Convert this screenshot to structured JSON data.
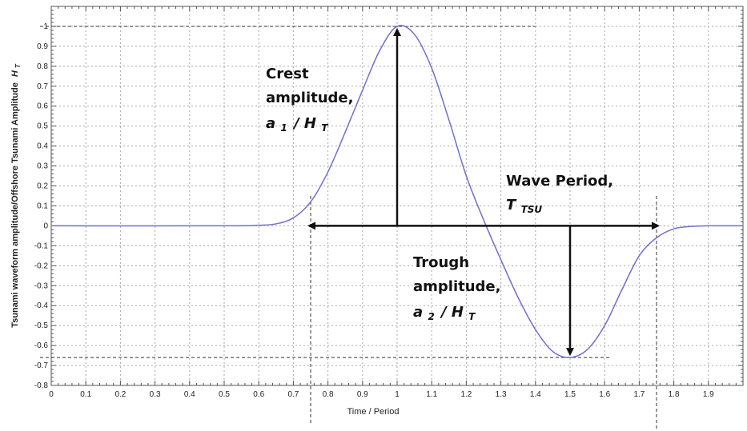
{
  "chart_data": {
    "type": "line",
    "title": "",
    "xlabel": "Time / Period",
    "ylabel": "Tsunami waveform amplitude/Offshore Tsunami Amplitude",
    "ylabel_symbol": "H",
    "ylabel_symbol_sub": "T",
    "xlim": [
      0,
      2.0
    ],
    "ylim": [
      -0.8,
      1.1
    ],
    "x_ticks": [
      "0",
      "0.1",
      "0.2",
      "0.3",
      "0.4",
      "0.5",
      "0.6",
      "0.7",
      "0.8",
      "0.9",
      "1",
      "1.1",
      "1.2",
      "1.3",
      "1.4",
      "1.5",
      "1.6",
      "1.7",
      "1.8",
      "1.9"
    ],
    "x_tick_values": [
      0,
      0.1,
      0.2,
      0.3,
      0.4,
      0.5,
      0.6,
      0.7,
      0.8,
      0.9,
      1.0,
      1.1,
      1.2,
      1.3,
      1.4,
      1.5,
      1.6,
      1.7,
      1.8,
      1.9
    ],
    "y_ticks": [
      "1",
      "0.9",
      "0.8",
      "0.7",
      "0.6",
      "0.5",
      "0.4",
      "0.3",
      "0.2",
      "0.1",
      "0",
      "-0.1",
      "-0.2",
      "-0.3",
      "-0.4",
      "-0.5",
      "-0.6",
      "-0.7",
      "-0.8"
    ],
    "y_tick_values": [
      1,
      0.9,
      0.8,
      0.7,
      0.6,
      0.5,
      0.4,
      0.3,
      0.2,
      0.1,
      0,
      -0.1,
      -0.2,
      -0.3,
      -0.4,
      -0.5,
      -0.6,
      -0.7,
      -0.8
    ],
    "grid": true,
    "line_color": "#6f6fcf",
    "series": [
      {
        "x": [
          0,
          0.5,
          0.6,
          0.65,
          0.7,
          0.75,
          0.8,
          0.85,
          0.9,
          0.95,
          1.0,
          1.05,
          1.1,
          1.15,
          1.2,
          1.25,
          1.3,
          1.35,
          1.4,
          1.45,
          1.5,
          1.55,
          1.6,
          1.65,
          1.7,
          1.75,
          1.8,
          1.85,
          1.9,
          2.0
        ],
        "y": [
          0,
          0,
          0.003,
          0.01,
          0.04,
          0.12,
          0.27,
          0.47,
          0.68,
          0.88,
          1.0,
          0.96,
          0.79,
          0.53,
          0.25,
          0.03,
          -0.17,
          -0.36,
          -0.52,
          -0.63,
          -0.66,
          -0.62,
          -0.5,
          -0.32,
          -0.15,
          -0.06,
          -0.015,
          -0.003,
          0,
          0
        ]
      }
    ],
    "reference_lines": {
      "crest_level": 1.0,
      "trough_level": -0.66,
      "period_start": 0.75,
      "period_end": 1.75,
      "crest_time": 1.0,
      "trough_time": 1.5
    },
    "annotations": {
      "crest_line1": "Crest",
      "crest_line2": "amplitude,",
      "crest_sym": "a",
      "crest_sub": "1",
      "crest_div": "/ H",
      "crest_div_sub": "T",
      "period_line1": "Wave Period,",
      "period_sym": "T",
      "period_sub": "TSU",
      "trough_line1": "Trough",
      "trough_line2": "amplitude,",
      "trough_sym": "a",
      "trough_sub": "2",
      "trough_div": "/ H",
      "trough_div_sub": "T"
    }
  }
}
